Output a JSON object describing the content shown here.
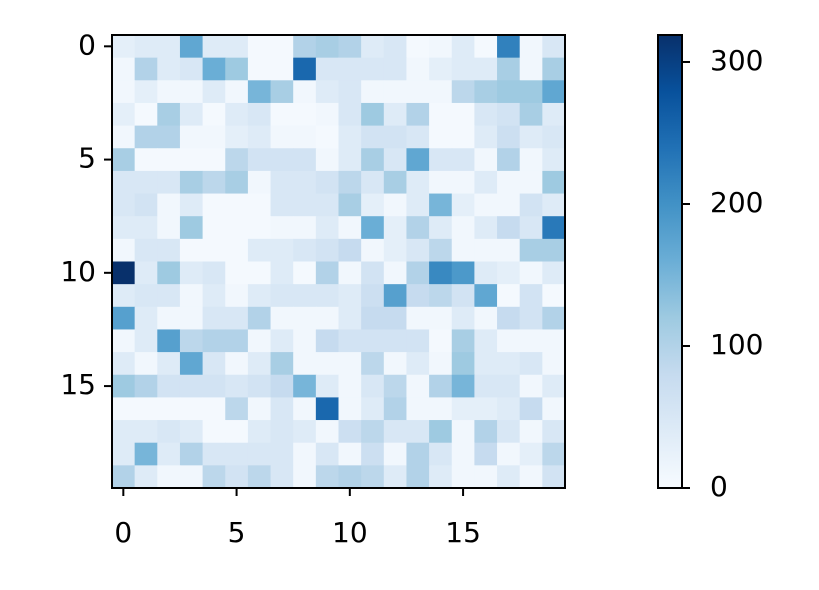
{
  "chart_data": {
    "type": "heatmap",
    "cmap": "Blues",
    "z": [
      [
        30,
        40,
        40,
        170,
        40,
        40,
        5,
        5,
        100,
        110,
        100,
        40,
        50,
        5,
        10,
        40,
        5,
        220,
        10,
        50
      ],
      [
        10,
        100,
        40,
        50,
        160,
        120,
        5,
        5,
        250,
        50,
        50,
        50,
        50,
        10,
        30,
        40,
        40,
        110,
        10,
        110
      ],
      [
        10,
        30,
        10,
        10,
        40,
        10,
        150,
        110,
        10,
        40,
        50,
        10,
        10,
        10,
        10,
        90,
        110,
        120,
        120,
        170
      ],
      [
        30,
        5,
        110,
        40,
        5,
        40,
        50,
        5,
        5,
        10,
        50,
        120,
        40,
        100,
        5,
        5,
        50,
        60,
        110,
        40
      ],
      [
        10,
        100,
        100,
        10,
        10,
        30,
        40,
        10,
        10,
        5,
        40,
        60,
        60,
        50,
        5,
        5,
        40,
        70,
        40,
        50
      ],
      [
        110,
        5,
        5,
        5,
        5,
        90,
        60,
        60,
        60,
        10,
        40,
        110,
        50,
        170,
        50,
        50,
        10,
        100,
        10,
        40
      ],
      [
        50,
        50,
        50,
        110,
        90,
        110,
        10,
        50,
        50,
        60,
        90,
        50,
        110,
        40,
        10,
        10,
        40,
        10,
        10,
        120
      ],
      [
        50,
        60,
        10,
        40,
        5,
        5,
        5,
        50,
        50,
        50,
        110,
        30,
        10,
        40,
        150,
        30,
        10,
        10,
        60,
        40
      ],
      [
        40,
        40,
        10,
        120,
        5,
        5,
        5,
        10,
        10,
        40,
        10,
        160,
        30,
        100,
        40,
        10,
        40,
        80,
        50,
        230
      ],
      [
        10,
        50,
        50,
        5,
        5,
        5,
        40,
        40,
        50,
        60,
        80,
        10,
        30,
        50,
        90,
        10,
        10,
        10,
        110,
        110
      ],
      [
        319,
        40,
        120,
        40,
        50,
        5,
        5,
        40,
        5,
        100,
        10,
        60,
        10,
        100,
        210,
        190,
        40,
        30,
        10,
        40
      ],
      [
        40,
        50,
        50,
        10,
        40,
        10,
        40,
        50,
        50,
        50,
        40,
        70,
        180,
        80,
        90,
        60,
        170,
        5,
        60,
        5
      ],
      [
        180,
        40,
        10,
        10,
        50,
        50,
        100,
        10,
        10,
        10,
        40,
        80,
        80,
        10,
        10,
        40,
        10,
        80,
        60,
        100
      ],
      [
        10,
        40,
        180,
        90,
        100,
        100,
        10,
        40,
        10,
        80,
        60,
        60,
        60,
        60,
        5,
        110,
        40,
        10,
        10,
        10
      ],
      [
        40,
        10,
        40,
        170,
        50,
        10,
        40,
        110,
        10,
        10,
        10,
        90,
        10,
        40,
        10,
        120,
        40,
        40,
        50,
        10
      ],
      [
        120,
        100,
        60,
        60,
        60,
        50,
        60,
        80,
        150,
        40,
        10,
        50,
        90,
        10,
        100,
        150,
        50,
        50,
        10,
        40
      ],
      [
        5,
        5,
        5,
        5,
        5,
        90,
        10,
        50,
        10,
        250,
        10,
        40,
        100,
        10,
        10,
        30,
        30,
        40,
        80,
        10
      ],
      [
        40,
        40,
        50,
        40,
        5,
        5,
        40,
        50,
        40,
        10,
        70,
        90,
        50,
        50,
        120,
        10,
        100,
        50,
        10,
        50
      ],
      [
        40,
        150,
        40,
        100,
        50,
        50,
        50,
        50,
        10,
        50,
        10,
        70,
        10,
        100,
        50,
        10,
        80,
        10,
        30,
        90
      ],
      [
        100,
        40,
        10,
        10,
        90,
        60,
        90,
        50,
        10,
        90,
        100,
        90,
        40,
        100,
        40,
        10,
        10,
        40,
        10,
        60
      ]
    ],
    "xlim": [
      -0.5,
      19.5
    ],
    "ylim": [
      19.5,
      -0.5
    ],
    "xticks": [
      0,
      5,
      10,
      15
    ],
    "yticks": [
      0,
      5,
      10,
      15
    ],
    "clim": [
      0,
      319
    ],
    "cticks": [
      0,
      100,
      200,
      300
    ]
  }
}
